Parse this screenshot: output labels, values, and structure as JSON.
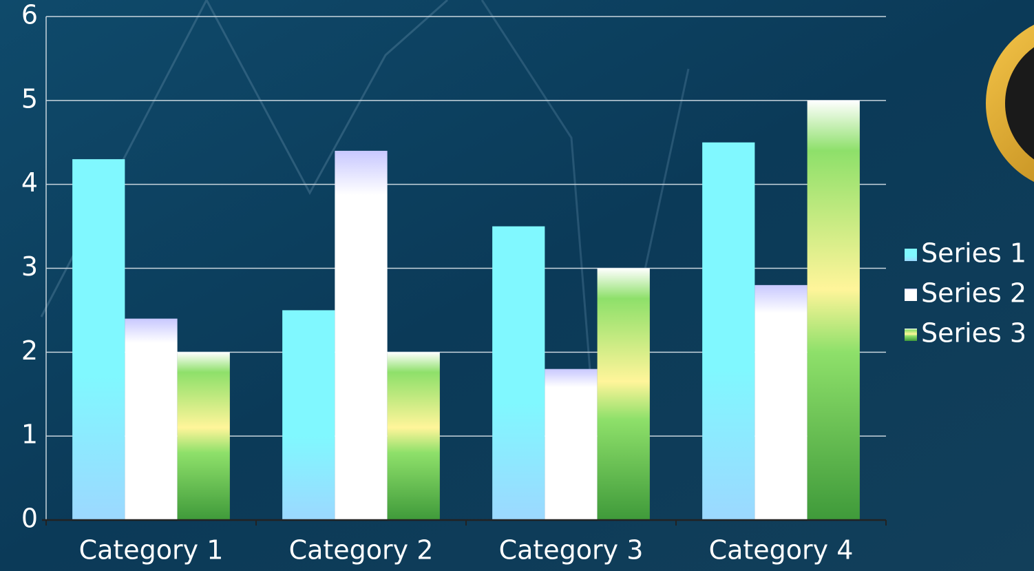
{
  "chart_data": {
    "type": "bar",
    "categories": [
      "Category 1",
      "Category 2",
      "Category 3",
      "Category 4"
    ],
    "series": [
      {
        "name": "Series 1",
        "color": "#80f8ff",
        "values": [
          4.3,
          2.5,
          3.5,
          4.5
        ]
      },
      {
        "name": "Series 2",
        "color": "#ffffff",
        "values": [
          2.4,
          4.4,
          1.8,
          2.8
        ]
      },
      {
        "name": "Series 3",
        "color": "#8ee06a",
        "values": [
          2,
          2,
          3,
          5
        ]
      }
    ],
    "ylim": [
      0,
      6
    ],
    "yticks": [
      0,
      1,
      2,
      3,
      4,
      5,
      6
    ],
    "grid": true,
    "legend": "right"
  }
}
